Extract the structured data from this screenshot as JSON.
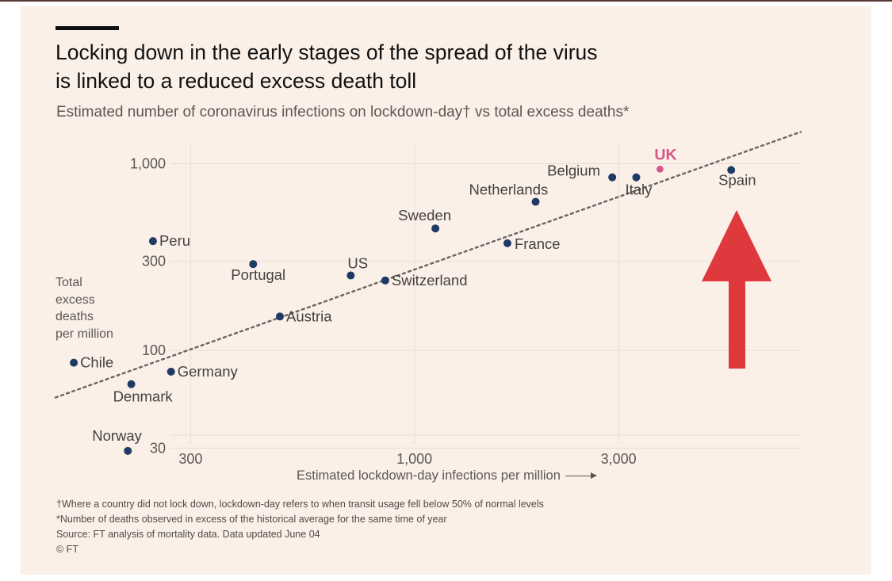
{
  "title_lines": [
    "Locking down in the early stages of the spread of the virus",
    "is linked to a reduced excess death toll"
  ],
  "subtitle": "Estimated number of coronavirus infections on lockdown-day† vs total excess deaths*",
  "colors": {
    "background": "#fbf0e8",
    "point": "#1f3b63",
    "highlight": "#d9568a",
    "trend": "#6b6463",
    "arrow": "#e0393d",
    "grid": "#ecdfd6"
  },
  "chart_data": {
    "type": "scatter",
    "x_scale": "log",
    "y_scale": "log",
    "xlabel": "Estimated lockdown-day infections per million",
    "ylabel": [
      "Total",
      "excess",
      "deaths",
      "per million"
    ],
    "xlim": [
      145,
      8000
    ],
    "ylim": [
      26,
      1500
    ],
    "x_ticks": [
      {
        "value": 300,
        "label": "300"
      },
      {
        "value": 1000,
        "label": "1,000"
      },
      {
        "value": 3000,
        "label": "3,000"
      }
    ],
    "y_ticks": [
      {
        "value": 30,
        "label": "30"
      },
      {
        "value": 100,
        "label": "100"
      },
      {
        "value": 300,
        "label": "300"
      },
      {
        "value": 1000,
        "label": "1,000"
      }
    ],
    "grid": true,
    "trendline": {
      "style": "dotted",
      "x": [
        145,
        8000
      ],
      "y": [
        56,
        1480
      ]
    },
    "points": [
      {
        "name": "UK",
        "x": 3750,
        "y": 935,
        "highlight": true
      },
      {
        "name": "Spain",
        "x": 5500,
        "y": 925
      },
      {
        "name": "Belgium",
        "x": 2900,
        "y": 845
      },
      {
        "name": "Italy",
        "x": 3300,
        "y": 845
      },
      {
        "name": "Netherlands",
        "x": 1920,
        "y": 625
      },
      {
        "name": "Sweden",
        "x": 1120,
        "y": 450
      },
      {
        "name": "France",
        "x": 1650,
        "y": 375
      },
      {
        "name": "Peru",
        "x": 245,
        "y": 385
      },
      {
        "name": "Portugal",
        "x": 420,
        "y": 290
      },
      {
        "name": "US",
        "x": 710,
        "y": 252
      },
      {
        "name": "Switzerland",
        "x": 855,
        "y": 237
      },
      {
        "name": "Austria",
        "x": 485,
        "y": 152
      },
      {
        "name": "Chile",
        "x": 160,
        "y": 86
      },
      {
        "name": "Germany",
        "x": 270,
        "y": 77
      },
      {
        "name": "Denmark",
        "x": 218,
        "y": 66
      },
      {
        "name": "Norway",
        "x": 214,
        "y": 29
      }
    ]
  },
  "notes": [
    "†Where a country did not lock down, lockdown-day refers to when transit usage fell below 50% of normal levels",
    "*Number of deaths observed in excess of the historical average for the same time of year",
    "Source: FT analysis of mortality data. Data updated June 04",
    "© FT"
  ]
}
